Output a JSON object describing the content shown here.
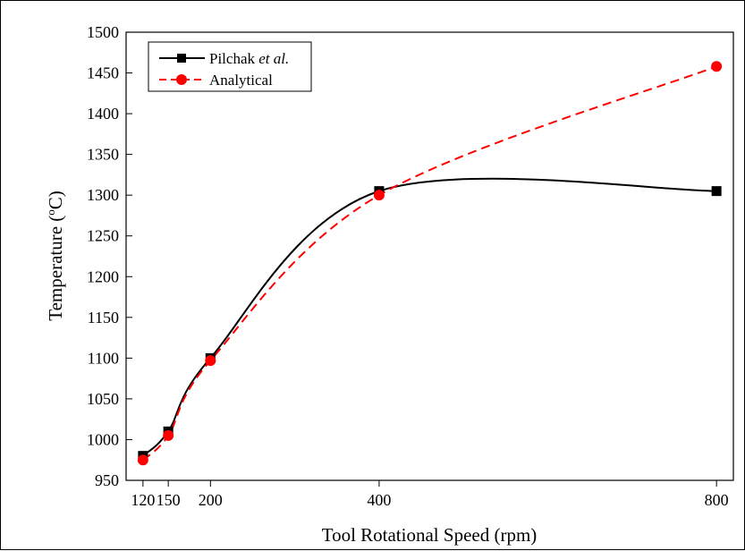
{
  "chart_data": {
    "type": "line",
    "xlabel": "Tool Rotational Speed (rpm)",
    "ylabel": {
      "main": "Temperature (",
      "superscript": "o",
      "unit": "C)"
    },
    "x_ticks": [
      120,
      150,
      200,
      400,
      800
    ],
    "y_ticks": [
      950,
      1000,
      1050,
      1100,
      1150,
      1200,
      1250,
      1300,
      1350,
      1400,
      1450,
      1500
    ],
    "xlim": [
      100,
      820
    ],
    "ylim": [
      950,
      1500
    ],
    "grid": false,
    "legend_position": "top-left",
    "series": [
      {
        "name": "Pilchak",
        "name_italic": "et al.",
        "color": "#000000",
        "line_style": "solid",
        "marker": "square",
        "x": [
          120,
          150,
          200,
          400,
          800
        ],
        "y": [
          980,
          1010,
          1100,
          1305,
          1305
        ]
      },
      {
        "name": "Analytical",
        "color": "#ff0000",
        "line_style": "dashed",
        "marker": "circle",
        "x": [
          120,
          150,
          200,
          400,
          800
        ],
        "y": [
          975,
          1005,
          1097,
          1300,
          1458
        ]
      }
    ]
  }
}
